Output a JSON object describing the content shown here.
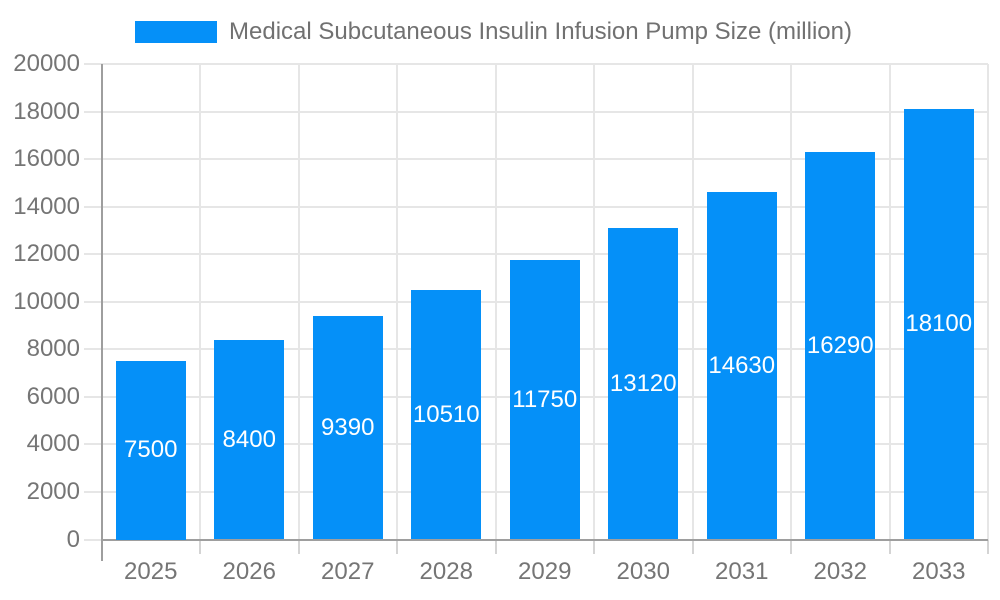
{
  "legend": {
    "label": "Medical Subcutaneous Insulin Infusion Pump Size (million)"
  },
  "colors": {
    "bar": "#0590f8",
    "grid": "#e6e6e6",
    "tick": "#d4d4d4",
    "axis": "#9e9e9e",
    "text": "#757575",
    "legend_text": "#717171",
    "bar_label": "#ffffff"
  },
  "chart_data": {
    "type": "bar",
    "title": "Medical Subcutaneous Insulin Infusion Pump Size (million)",
    "categories": [
      "2025",
      "2026",
      "2027",
      "2028",
      "2029",
      "2030",
      "2031",
      "2032",
      "2033"
    ],
    "values": [
      7500,
      8400,
      9390,
      10510,
      11750,
      13120,
      14630,
      16290,
      18100
    ],
    "xlabel": "",
    "ylabel": "",
    "ylim": [
      0,
      20000
    ],
    "yticks": [
      0,
      2000,
      4000,
      6000,
      8000,
      10000,
      12000,
      14000,
      16000,
      18000,
      20000
    ],
    "grid": true,
    "legend_position": "top",
    "bar_labels_inside": true
  }
}
